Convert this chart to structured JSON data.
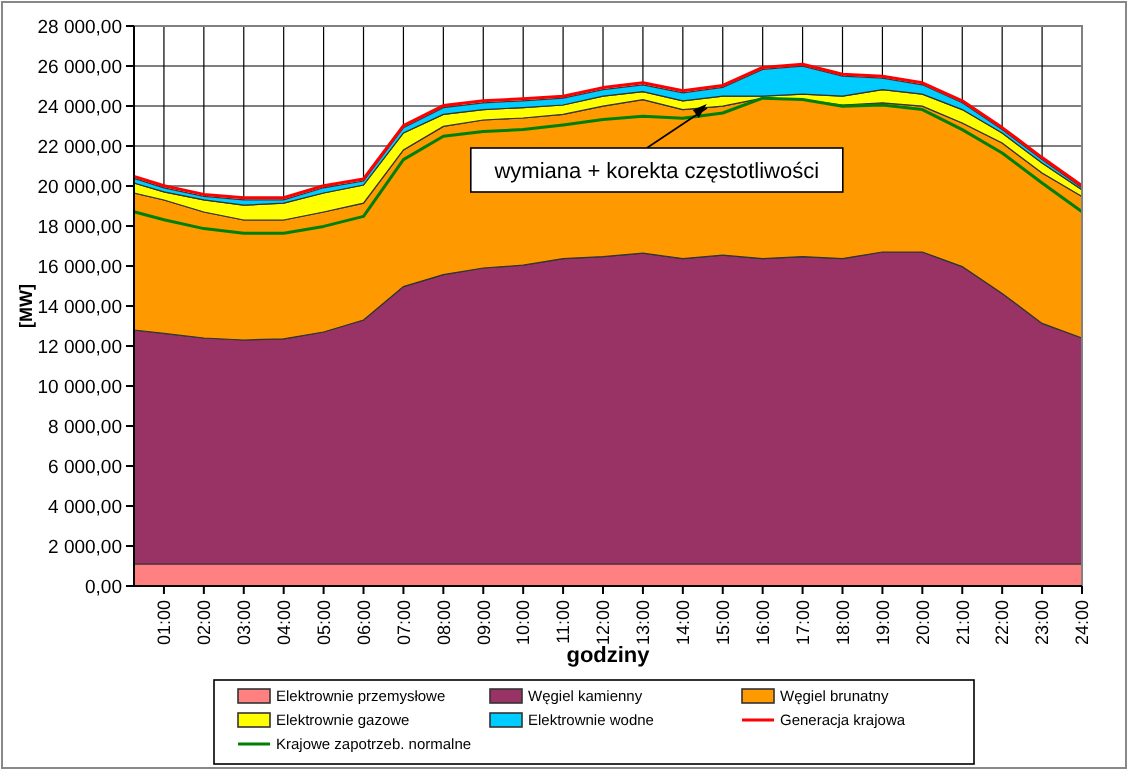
{
  "chart_data": {
    "type": "area",
    "stacked": true,
    "xlabel": "godziny",
    "ylabel": "[MW]",
    "grid": true,
    "legend": "bottom",
    "x": [
      0.25,
      1,
      2,
      3,
      4,
      5,
      6,
      7,
      8,
      9,
      10,
      11,
      12,
      13,
      14,
      15,
      16,
      17,
      18,
      19,
      20,
      21,
      22,
      23,
      24
    ],
    "xlim": [
      0.25,
      24
    ],
    "xticks": [
      {
        "value": 1,
        "label": "01:00"
      },
      {
        "value": 2,
        "label": "02:00"
      },
      {
        "value": 3,
        "label": "03:00"
      },
      {
        "value": 4,
        "label": "04:00"
      },
      {
        "value": 5,
        "label": "05:00"
      },
      {
        "value": 6,
        "label": "06:00"
      },
      {
        "value": 7,
        "label": "07:00"
      },
      {
        "value": 8,
        "label": "08:00"
      },
      {
        "value": 9,
        "label": "09:00"
      },
      {
        "value": 10,
        "label": "10:00"
      },
      {
        "value": 11,
        "label": "11:00"
      },
      {
        "value": 12,
        "label": "12:00"
      },
      {
        "value": 13,
        "label": "13:00"
      },
      {
        "value": 14,
        "label": "14:00"
      },
      {
        "value": 15,
        "label": "15:00"
      },
      {
        "value": 16,
        "label": "16:00"
      },
      {
        "value": 17,
        "label": "17:00"
      },
      {
        "value": 18,
        "label": "18:00"
      },
      {
        "value": 19,
        "label": "19:00"
      },
      {
        "value": 20,
        "label": "20:00"
      },
      {
        "value": 21,
        "label": "21:00"
      },
      {
        "value": 22,
        "label": "22:00"
      },
      {
        "value": 23,
        "label": "23:00"
      },
      {
        "value": 24,
        "label": "24:00"
      }
    ],
    "ylim": [
      0,
      28000
    ],
    "yticks": [
      {
        "value": 0,
        "label": "0,00"
      },
      {
        "value": 2000,
        "label": "2 000,00"
      },
      {
        "value": 4000,
        "label": "4 000,00"
      },
      {
        "value": 6000,
        "label": "6 000,00"
      },
      {
        "value": 8000,
        "label": "8 000,00"
      },
      {
        "value": 10000,
        "label": "10 000,00"
      },
      {
        "value": 12000,
        "label": "12 000,00"
      },
      {
        "value": 14000,
        "label": "14 000,00"
      },
      {
        "value": 16000,
        "label": "16 000,00"
      },
      {
        "value": 18000,
        "label": "18 000,00"
      },
      {
        "value": 20000,
        "label": "20 000,00"
      },
      {
        "value": 22000,
        "label": "22 000,00"
      },
      {
        "value": 24000,
        "label": "24 000,00"
      },
      {
        "value": 26000,
        "label": "26 000,00"
      },
      {
        "value": 28000,
        "label": "28 000,00"
      }
    ],
    "series": [
      {
        "name": "Elektrownie przemysłowe",
        "color": "#ff8080",
        "values": [
          1100,
          1100,
          1100,
          1100,
          1100,
          1100,
          1100,
          1100,
          1100,
          1100,
          1100,
          1100,
          1100,
          1100,
          1100,
          1100,
          1100,
          1100,
          1100,
          1100,
          1100,
          1100,
          1100,
          1100,
          1100
        ]
      },
      {
        "name": "Węgiel kamienny",
        "color": "#993366",
        "values": [
          11700,
          11530,
          11300,
          11200,
          11260,
          11600,
          12200,
          13870,
          14470,
          14800,
          14940,
          15270,
          15370,
          15540,
          15270,
          15440,
          15270,
          15370,
          15270,
          15600,
          15600,
          14870,
          13530,
          12030,
          11300
        ]
      },
      {
        "name": "Węgiel brunatny",
        "color": "#ff9900",
        "values": [
          6850,
          6670,
          6300,
          6000,
          5940,
          6000,
          5840,
          6830,
          7410,
          7400,
          7360,
          7210,
          7520,
          7680,
          7450,
          7450,
          8020,
          7850,
          7680,
          7460,
          7290,
          7180,
          7520,
          7520,
          7080
        ]
      },
      {
        "name": "Elektrownie gazowe",
        "color": "#ffff00",
        "values": [
          500,
          410,
          610,
          740,
          840,
          950,
          910,
          850,
          600,
          520,
          520,
          470,
          500,
          400,
          440,
          500,
          100,
          270,
          440,
          660,
          600,
          670,
          500,
          500,
          330
        ]
      },
      {
        "name": "Elektrownie wodne",
        "color": "#00ccff",
        "values": [
          230,
          200,
          170,
          270,
          170,
          260,
          200,
          270,
          340,
          340,
          340,
          340,
          330,
          340,
          400,
          440,
          1340,
          1400,
          1000,
          570,
          470,
          340,
          170,
          170,
          100
        ]
      },
      {
        "name": "Generacja krajowa",
        "type": "line",
        "color": "#ff0000",
        "values": [
          20480,
          20010,
          19580,
          19410,
          19410,
          20010,
          20350,
          23020,
          24020,
          24260,
          24360,
          24490,
          24920,
          25160,
          24760,
          25030,
          25930,
          26090,
          25590,
          25490,
          25160,
          24260,
          22920,
          21420,
          20010
        ]
      },
      {
        "name": "Krajowe zapotrzeb. normalne",
        "type": "line",
        "color": "#008000",
        "values": [
          18710,
          18310,
          17870,
          17640,
          17640,
          17980,
          18480,
          21320,
          22490,
          22720,
          22820,
          23050,
          23320,
          23490,
          23390,
          23650,
          24390,
          24320,
          23990,
          24050,
          23820,
          22820,
          21650,
          20150,
          18710
        ]
      }
    ],
    "annotations": [
      {
        "text": "wymiana + korekta częstotliwości",
        "x": 14.6,
        "y": 24100
      }
    ]
  }
}
